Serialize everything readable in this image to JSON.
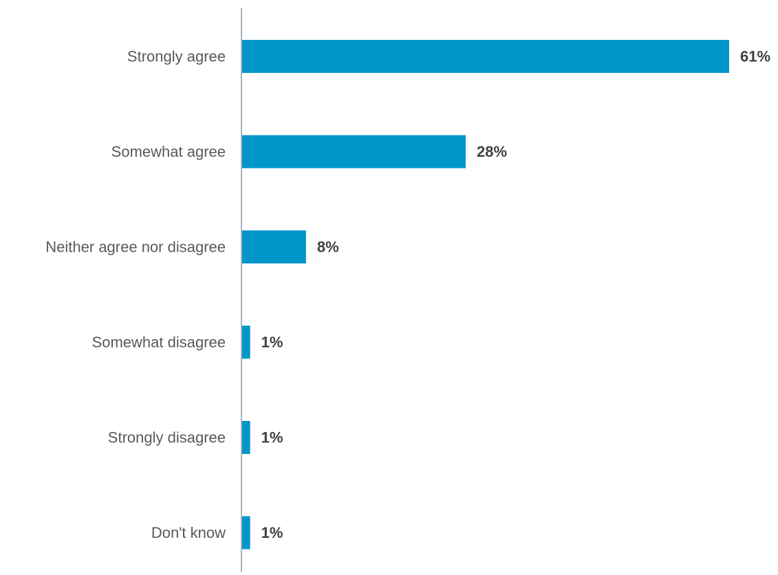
{
  "chart_data": {
    "type": "bar",
    "orientation": "horizontal",
    "categories": [
      "Strongly agree",
      "Somewhat agree",
      "Neither agree nor disagree",
      "Somewhat disagree",
      "Strongly disagree",
      "Don't know"
    ],
    "values": [
      61,
      28,
      8,
      1,
      1,
      1
    ],
    "value_labels": [
      "61%",
      "28%",
      "8%",
      "1%",
      "1%",
      "1%"
    ],
    "unit": "%",
    "xlim": [
      0,
      61
    ],
    "grid": false,
    "legend": "none",
    "bar_color": "#0096C8",
    "axis_color": "#8497A8"
  }
}
